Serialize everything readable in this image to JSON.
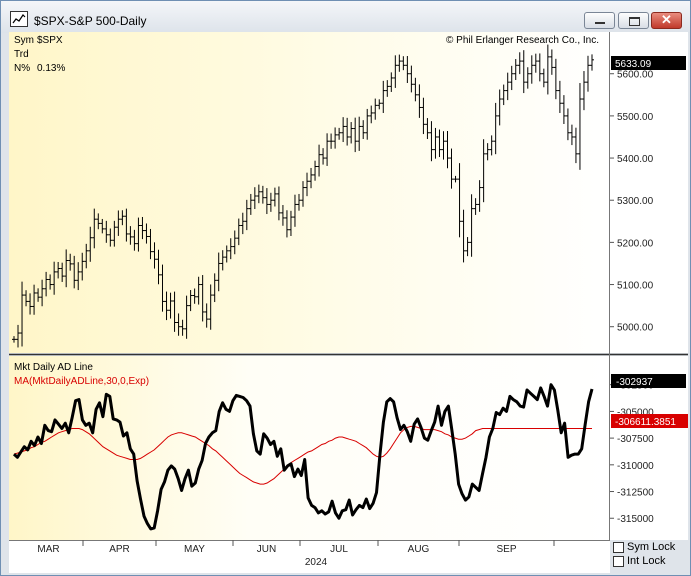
{
  "window": {
    "title": "$SPX-S&P 500-Daily",
    "controls": {
      "minimize": "–",
      "maximize": "□",
      "close": "✕"
    }
  },
  "header": {
    "sym_label": "Sym",
    "sym_value": "$SPX",
    "trd_label": "Trd",
    "n_label": "N%",
    "n_value": "0.13%",
    "copyright": "© Phil Erlanger Research Co., Inc."
  },
  "price_panel": {
    "last_price_label": "5633.09"
  },
  "ad_panel": {
    "title": "Mkt Daily AD Line",
    "ma_label": "MA(MktDailyADLine,30,0,Exp)",
    "last_value_label": "-302937",
    "ma_value_label": "-306611.3851"
  },
  "controls": {
    "sym_lock": "Sym Lock",
    "int_lock": "Int Lock"
  },
  "colors": {
    "background": "#ffffff",
    "highlight": "#fffbd6",
    "price_bars": "#000000",
    "ad_line": "#000000",
    "ma_line": "#d80000"
  },
  "chart_data": [
    {
      "type": "ohlc",
      "title": "$SPX-S&P 500-Daily",
      "x_labels": [
        "MAR",
        "APR",
        "MAY",
        "JUN",
        "JUL",
        "AUG",
        "SEP"
      ],
      "year_label": "2024",
      "y_ticks": [
        5000,
        5100,
        5200,
        5300,
        5400,
        5500,
        5600
      ],
      "y_tick_labels": [
        "5000.00",
        "5100.00",
        "5200.00",
        "5300.00",
        "5400.00",
        "5500.00",
        "5600.00"
      ],
      "ylim": [
        4940,
        5680
      ],
      "last": 5633.09,
      "closes": [
        4970,
        4985,
        5075,
        5060,
        5048,
        5080,
        5070,
        5090,
        5112,
        5100,
        5130,
        5138,
        5120,
        5157,
        5149,
        5110,
        5130,
        5155,
        5180,
        5211,
        5255,
        5245,
        5232,
        5218,
        5205,
        5236,
        5255,
        5262,
        5220,
        5213,
        5197,
        5240,
        5228,
        5214,
        5178,
        5160,
        5123,
        5060,
        5039,
        5061,
        5010,
        5000,
        4995,
        5050,
        5074,
        5071,
        5100,
        5035,
        5018,
        5075,
        5110,
        5150,
        5165,
        5180,
        5190,
        5210,
        5240,
        5250,
        5280,
        5300,
        5310,
        5320,
        5306,
        5290,
        5300,
        5315,
        5270,
        5258,
        5230,
        5260,
        5290,
        5300,
        5330,
        5345,
        5360,
        5380,
        5408,
        5400,
        5440,
        5440,
        5455,
        5460,
        5475,
        5450,
        5470,
        5440,
        5475,
        5460,
        5500,
        5507,
        5525,
        5530,
        5560,
        5570,
        5590,
        5620,
        5630,
        5620,
        5600,
        5575,
        5550,
        5520,
        5480,
        5460,
        5420,
        5450,
        5420,
        5440,
        5400,
        5350,
        5350,
        5250,
        5180,
        5200,
        5280,
        5290,
        5330,
        5410,
        5420,
        5440,
        5500,
        5540,
        5560,
        5580,
        5600,
        5620,
        5630,
        5580,
        5600,
        5620,
        5630,
        5600,
        5580,
        5640,
        5615,
        5560,
        5530,
        5500,
        5460,
        5450,
        5410,
        5540,
        5580,
        5620,
        5633
      ]
    },
    {
      "type": "line",
      "title": "Mkt Daily AD Line",
      "series": [
        {
          "name": "Mkt Daily AD Line"
        },
        {
          "name": "MA(MktDailyADLine,30,0,Exp)"
        }
      ],
      "y_ticks": [
        -315000,
        -312500,
        -310000,
        -307500,
        -305000,
        -302500
      ],
      "y_tick_labels": [
        "-315000",
        "-312500",
        "-310000",
        "-307500",
        "-305000",
        "-302500"
      ],
      "ylim": [
        -316100,
        -301500
      ],
      "ad_values": [
        -309000,
        -309300,
        -308800,
        -308300,
        -308600,
        -307800,
        -308200,
        -307400,
        -308000,
        -306300,
        -306800,
        -306900,
        -305800,
        -306200,
        -306600,
        -306100,
        -307000,
        -305600,
        -304000,
        -303900,
        -305800,
        -306300,
        -306100,
        -307000,
        -304800,
        -304200,
        -305500,
        -303400,
        -303600,
        -305700,
        -305800,
        -306000,
        -307300,
        -307000,
        -308500,
        -309000,
        -311500,
        -313200,
        -314800,
        -315500,
        -316000,
        -315900,
        -314300,
        -312300,
        -311600,
        -310500,
        -310100,
        -310400,
        -311300,
        -312400,
        -311300,
        -310500,
        -312000,
        -311700,
        -310400,
        -309600,
        -308000,
        -307400,
        -307000,
        -306800,
        -305000,
        -304200,
        -304800,
        -305000,
        -304000,
        -303500,
        -303600,
        -303700,
        -304000,
        -304500,
        -307100,
        -308700,
        -309000,
        -307100,
        -307500,
        -308100,
        -307800,
        -309200,
        -308500,
        -310500,
        -310100,
        -309900,
        -311100,
        -310400,
        -311000,
        -309500,
        -313100,
        -313800,
        -314000,
        -314500,
        -314300,
        -314600,
        -314400,
        -313400,
        -314500,
        -315000,
        -314300,
        -314200,
        -313300,
        -314700,
        -314200,
        -313800,
        -314000,
        -313200,
        -314100,
        -313600,
        -312600,
        -309000,
        -306000,
        -304100,
        -303800,
        -304100,
        -305600,
        -306700,
        -306300,
        -306900,
        -307800,
        -306200,
        -305700,
        -306500,
        -307500,
        -307700,
        -306800,
        -306000,
        -304500,
        -306300,
        -305000,
        -304500,
        -306700,
        -309000,
        -311800,
        -312700,
        -313300,
        -313000,
        -311800,
        -312100,
        -312400,
        -310800,
        -309300,
        -307400,
        -306600,
        -305100,
        -305300,
        -304700,
        -305000,
        -303600,
        -303900,
        -304100,
        -304500,
        -304600,
        -303000,
        -303300,
        -303600,
        -303900,
        -302800,
        -303600,
        -304500,
        -302500,
        -303000,
        -304900,
        -307000,
        -306100,
        -309300,
        -309100,
        -309000,
        -309000,
        -308500,
        -306200,
        -304100,
        -302900
      ],
      "ma_values": [
        -309000,
        -308900,
        -308800,
        -308700,
        -308600,
        -308400,
        -308300,
        -308100,
        -307900,
        -307800,
        -307600,
        -307400,
        -307200,
        -307000,
        -306900,
        -306800,
        -306700,
        -306600,
        -306600,
        -306600,
        -306700,
        -306900,
        -307100,
        -307400,
        -307700,
        -308000,
        -308300,
        -308500,
        -308700,
        -308900,
        -309100,
        -309200,
        -309300,
        -309400,
        -309500,
        -309500,
        -309500,
        -309400,
        -309200,
        -309000,
        -308800,
        -308600,
        -308300,
        -308000,
        -307700,
        -307400,
        -307200,
        -307100,
        -307000,
        -307000,
        -307100,
        -307200,
        -307300,
        -307400,
        -307600,
        -307800,
        -308000,
        -308200,
        -308500,
        -308700,
        -309000,
        -309300,
        -309600,
        -309900,
        -310200,
        -310500,
        -310800,
        -311000,
        -311200,
        -311400,
        -311600,
        -311700,
        -311800,
        -311800,
        -311700,
        -311500,
        -311300,
        -311000,
        -310700,
        -310400,
        -310100,
        -309800,
        -309600,
        -309400,
        -309200,
        -309000,
        -308800,
        -308700,
        -308500,
        -308300,
        -308100,
        -308000,
        -307800,
        -307700,
        -307500,
        -307400,
        -307400,
        -307500,
        -307600,
        -307700,
        -307800,
        -308000,
        -308200,
        -308400,
        -308700,
        -309000,
        -309200,
        -309300,
        -309200,
        -308900,
        -308500,
        -308000,
        -307500,
        -307000,
        -306700,
        -306500,
        -306400,
        -306400,
        -306500,
        -306600,
        -306700,
        -306700,
        -306700,
        -306700,
        -306800,
        -306900,
        -307100,
        -307200,
        -307400,
        -307500,
        -307600,
        -307600,
        -307500,
        -307300,
        -307100,
        -306800,
        -306700,
        -306600,
        -306600,
        -306600,
        -306600,
        -306600,
        -306600,
        -306600,
        -306600,
        -306600,
        -306600,
        -306600,
        -306600,
        -306600,
        -306600,
        -306600,
        -306600,
        -306600,
        -306600,
        -306600,
        -306600,
        -306600,
        -306600,
        -306600,
        -306600,
        -306600,
        -306600,
        -306600,
        -306600,
        -306600,
        -306600,
        -306600,
        -306600,
        -306600
      ]
    }
  ]
}
